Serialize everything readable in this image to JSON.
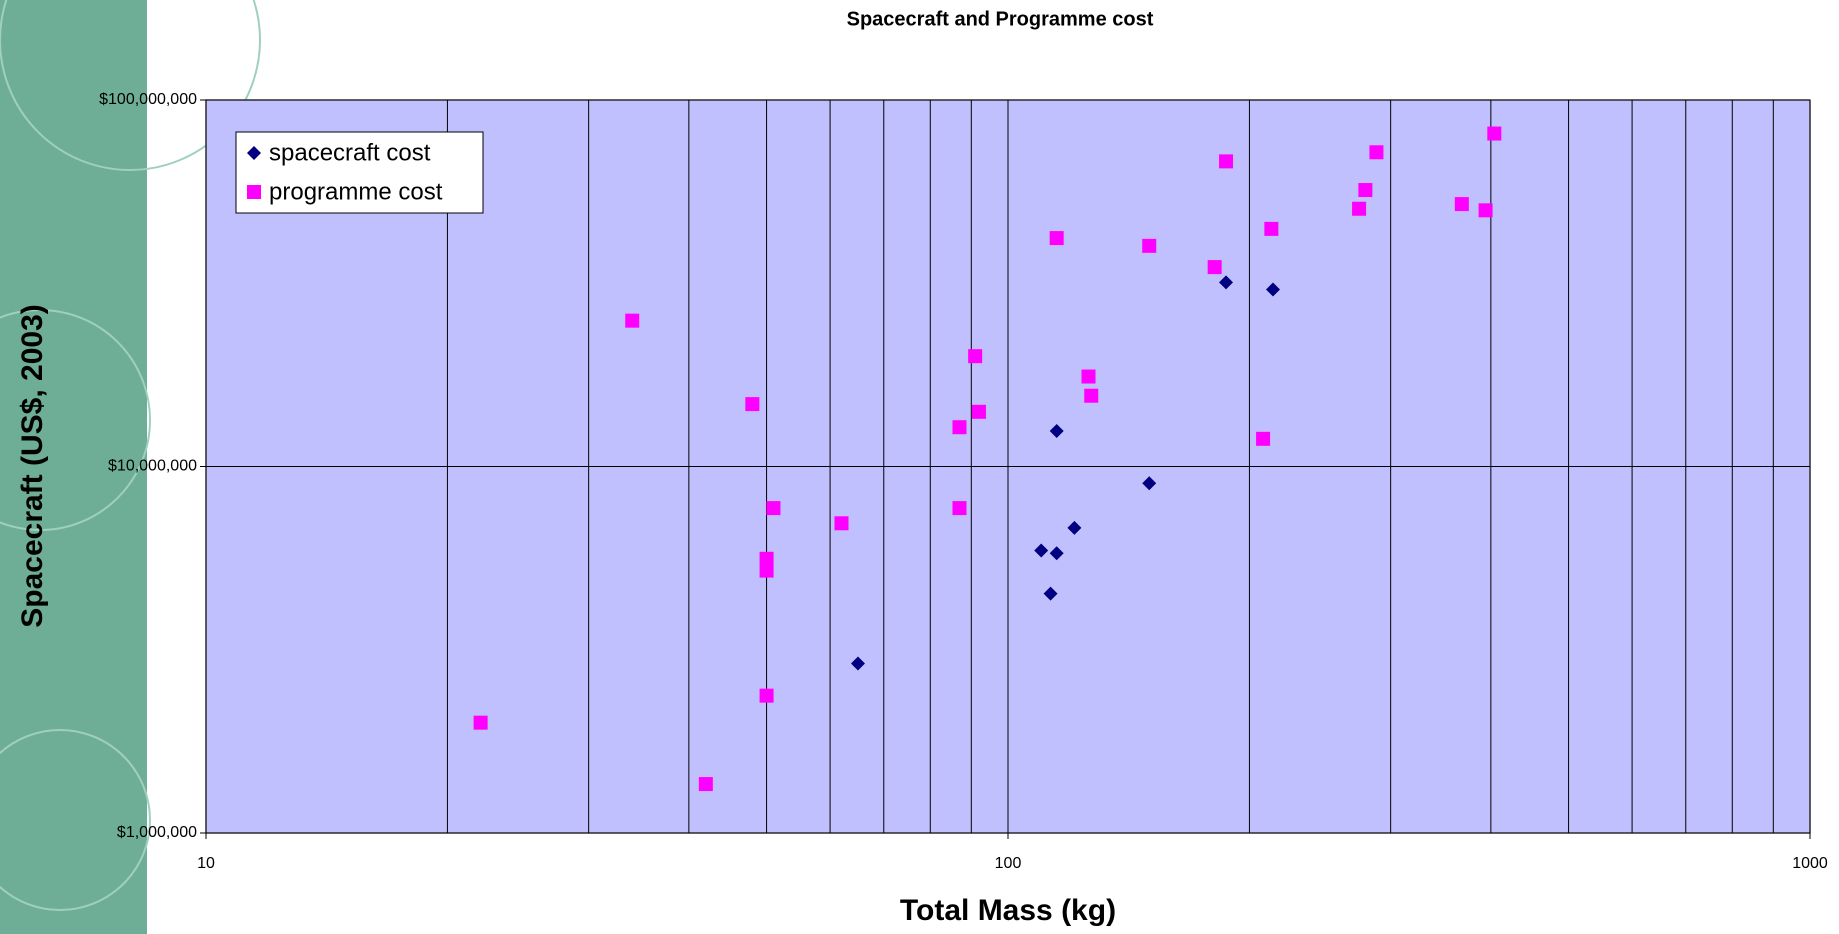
{
  "chart_data": {
    "type": "scatter",
    "title": "Spacecraft and Programme cost",
    "x_label": "Total Mass (kg)",
    "y_label": "Spacecraft (US$, 2003)",
    "xlog": true,
    "ylog": true,
    "xlim": [
      10,
      1000
    ],
    "ylim": [
      1000000,
      100000000
    ],
    "xticks": [
      10,
      100,
      1000
    ],
    "xgridlines": [
      10,
      20,
      30,
      40,
      50,
      60,
      70,
      80,
      90,
      100,
      200,
      300,
      400,
      500,
      600,
      700,
      800,
      900,
      1000
    ],
    "yticks": [
      {
        "value": 1000000,
        "label": "$1,000,000"
      },
      {
        "value": 10000000,
        "label": "$10,000,000"
      },
      {
        "value": 100000000,
        "label": "$100,000,000"
      }
    ],
    "grid": true,
    "legend": "upper left",
    "plot_background": "#c0c0ff",
    "series": [
      {
        "name": "spacecraft cost",
        "color": "#000080",
        "marker": "diamond",
        "x": [
          65,
          110,
          115,
          113,
          121,
          115,
          150,
          187,
          214
        ],
        "values": [
          2900000,
          5900000,
          5800000,
          4500000,
          6800000,
          12500000,
          9000000,
          31800000,
          30400000
        ]
      },
      {
        "name": "programme cost",
        "color": "#ff00ff",
        "marker": "square",
        "x": [
          22,
          34,
          42,
          48,
          50,
          50,
          50,
          51,
          62,
          87,
          87,
          91,
          92,
          115,
          126,
          127,
          150,
          181,
          187,
          208,
          213,
          274,
          279,
          288,
          368,
          394,
          404
        ],
        "values": [
          2000000,
          25000000,
          1360000,
          14800000,
          2370000,
          5600000,
          5200000,
          7700000,
          7000000,
          12800000,
          7700000,
          20000000,
          14100000,
          42000000,
          17600000,
          15600000,
          40000000,
          35000000,
          68000000,
          11900000,
          44500000,
          50500000,
          56800000,
          72000000,
          52000000,
          50000000,
          81000000
        ]
      }
    ]
  }
}
